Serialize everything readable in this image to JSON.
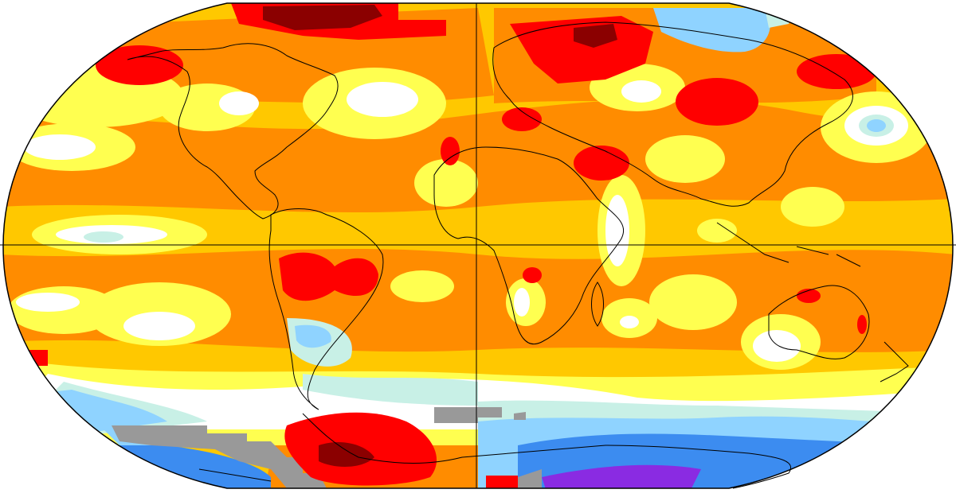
{
  "map": {
    "projection": "robinson",
    "colors": {
      "no_data": "#999999",
      "very_cold": "#8A2BE2",
      "cold": "#3C8CF0",
      "cool": "#8FD3FF",
      "slightly_cool": "#C8F0E6",
      "neutral": "#FFFFFF",
      "slightly_warm": "#FFFF50",
      "warm": "#FFC800",
      "hot": "#FF8C00",
      "very_hot": "#FF0000",
      "extreme": "#8B0000",
      "coastline": "#000000",
      "frame": "#000000"
    }
  }
}
